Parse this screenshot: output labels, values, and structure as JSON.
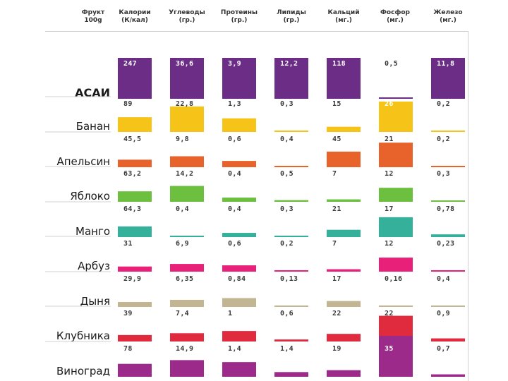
{
  "chart_data": {
    "type": "table",
    "title": "",
    "columns": [
      {
        "key": "fruit",
        "line1": "Фрукт",
        "line2": "100g"
      },
      {
        "key": "calories",
        "line1": "Калории",
        "line2": "(К/кал)"
      },
      {
        "key": "carbs",
        "line1": "Углеводы",
        "line2": "(гр.)"
      },
      {
        "key": "proteins",
        "line1": "Протеины",
        "line2": "(гр.)"
      },
      {
        "key": "lipids",
        "line1": "Липиды",
        "line2": "(гр.)"
      },
      {
        "key": "calcium",
        "line1": "Кальций",
        "line2": "(мг.)"
      },
      {
        "key": "phosphorus",
        "line1": "Фосфор",
        "line2": "(мг.)"
      },
      {
        "key": "iron",
        "line1": "Железо",
        "line2": "(мг.)"
      }
    ],
    "rows": [
      {
        "name": "АСАИ",
        "color": "#6b2d86",
        "highlight": true,
        "labels": [
          "247",
          "36,6",
          "3,9",
          "12,2",
          "118",
          "0,5",
          "11,8"
        ],
        "values": [
          247,
          36.6,
          3.9,
          12.2,
          118,
          0.5,
          11.8
        ]
      },
      {
        "name": "Банан",
        "color": "#f6c418",
        "highlight": false,
        "labels": [
          "89",
          "22,8",
          "1,3",
          "0,3",
          "15",
          "26",
          "0,2"
        ],
        "values": [
          89,
          22.8,
          1.3,
          0.3,
          15,
          26,
          0.2
        ]
      },
      {
        "name": "Апельсин",
        "color": "#e8622c",
        "highlight": false,
        "labels": [
          "45,5",
          "9,8",
          "0,6",
          "0,4",
          "45",
          "21",
          "0,2"
        ],
        "values": [
          45.5,
          9.8,
          0.6,
          0.4,
          45,
          21,
          0.2
        ]
      },
      {
        "name": "Яблоко",
        "color": "#6cbf3f",
        "highlight": false,
        "labels": [
          "63,2",
          "14,2",
          "0,4",
          "0,5",
          "7",
          "12",
          "0,3"
        ],
        "values": [
          63.2,
          14.2,
          0.4,
          0.5,
          7,
          12,
          0.3
        ]
      },
      {
        "name": "Манго",
        "color": "#35b09a",
        "highlight": false,
        "labels": [
          "64,3",
          "0,4",
          "0,4",
          "0,3",
          "21",
          "17",
          "0,78"
        ],
        "values": [
          64.3,
          0.4,
          0.4,
          0.3,
          21,
          17,
          0.78
        ]
      },
      {
        "name": "Арбуз",
        "color": "#e8207a",
        "highlight": false,
        "labels": [
          "31",
          "6,9",
          "0,6",
          "0,2",
          "7",
          "12",
          "0,23"
        ],
        "values": [
          31,
          6.9,
          0.6,
          0.2,
          7,
          12,
          0.23
        ]
      },
      {
        "name": "Дыня",
        "color": "#c2b592",
        "highlight": false,
        "labels": [
          "29,9",
          "6,35",
          "0,84",
          "0,13",
          "17",
          "0,16",
          "0,4"
        ],
        "values": [
          29.9,
          6.35,
          0.84,
          0.13,
          17,
          0.16,
          0.4
        ]
      },
      {
        "name": "Клубника",
        "color": "#e02a3e",
        "highlight": false,
        "labels": [
          "39",
          "7,4",
          "1",
          "0,6",
          "22",
          "22",
          "0,9"
        ],
        "values": [
          39,
          7.4,
          1,
          0.6,
          22,
          22,
          0.9
        ]
      },
      {
        "name": "Виноград",
        "color": "#9b2a8a",
        "highlight": false,
        "labels": [
          "78",
          "14,9",
          "1,4",
          "1,4",
          "19",
          "35",
          "0,7"
        ],
        "values": [
          78,
          14.9,
          1.4,
          1.4,
          19,
          35,
          0.7
        ]
      }
    ],
    "column_max": [
      247,
      36.6,
      3.9,
      12.2,
      118,
      35,
      11.8
    ]
  },
  "colors": {
    "label_text": "#3a3a3a",
    "label_on_bar": "#ffffff",
    "row_divider": "#d0d0d0"
  }
}
